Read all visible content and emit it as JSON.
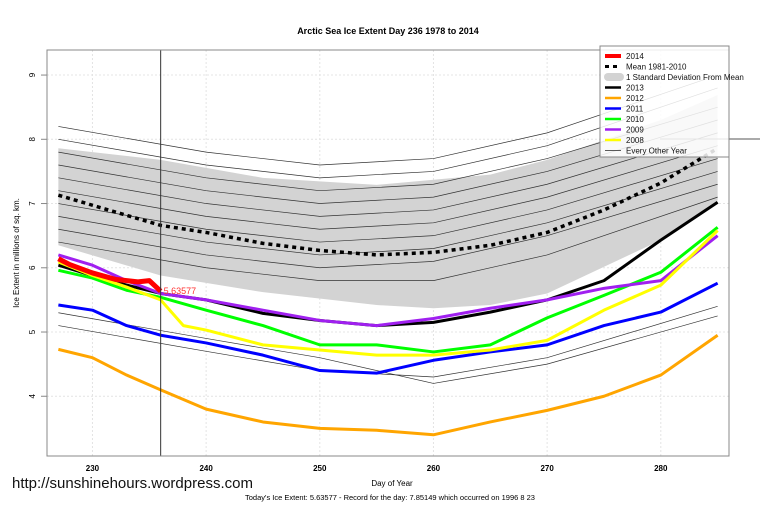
{
  "url_text": "http://sunshinehours.wordpress.com",
  "chart_data": {
    "type": "line",
    "title": "Arctic Sea Ice Extent Day 236 1978 to 2014",
    "xlabel": "Day of Year",
    "ylabel": "Ice Extent in millions of sq. km.",
    "footer": "Today's Ice Extent: 5.63577  - Record for the day: 7.85149 which occurred on 1996 8 23",
    "xlim": [
      226,
      286
    ],
    "ylim": [
      3.07,
      9.39
    ],
    "xticks": [
      "230",
      "240",
      "250",
      "260",
      "270",
      "280"
    ],
    "yticks": [
      "4",
      "5",
      "6",
      "7",
      "8",
      "9"
    ],
    "grid": true,
    "legend_position": "top-right",
    "current_day": 236,
    "current_value_label": "5.63577",
    "std_band": {
      "name": "1 Standard Deviation From Mean",
      "color": "#d3d3d3",
      "x": [
        227,
        236,
        245,
        255,
        260,
        265,
        270,
        280,
        285
      ],
      "upper": [
        7.86,
        7.68,
        7.4,
        7.29,
        7.37,
        7.45,
        7.68,
        8.3,
        8.69
      ],
      "lower": [
        6.35,
        5.88,
        5.62,
        5.42,
        5.37,
        5.42,
        5.6,
        6.43,
        7.05
      ]
    },
    "series": [
      {
        "name": "2014",
        "color": "#ff0000",
        "width": 5,
        "x": [
          227,
          228,
          230,
          232,
          234,
          235,
          236
        ],
        "y": [
          6.14,
          6.05,
          5.92,
          5.82,
          5.78,
          5.8,
          5.636
        ]
      },
      {
        "name": "Mean 1981-2010",
        "color": "#000000",
        "width": 3.5,
        "dashed": true,
        "x": [
          227,
          236,
          240,
          245,
          250,
          255,
          260,
          265,
          270,
          275,
          280,
          285
        ],
        "y": [
          7.13,
          6.66,
          6.55,
          6.38,
          6.27,
          6.2,
          6.24,
          6.35,
          6.55,
          6.9,
          7.32,
          7.86
        ]
      },
      {
        "name": "2013",
        "color": "#000000",
        "width": 3,
        "x": [
          227,
          230,
          233,
          236,
          240,
          245,
          250,
          255,
          260,
          265,
          270,
          275,
          280,
          285
        ],
        "y": [
          6.04,
          5.88,
          5.73,
          5.6,
          5.5,
          5.29,
          5.18,
          5.1,
          5.15,
          5.31,
          5.5,
          5.8,
          6.43,
          7.02
        ]
      },
      {
        "name": "2012",
        "color": "#ffa500",
        "width": 3,
        "x": [
          227,
          230,
          233,
          236,
          240,
          245,
          250,
          255,
          260,
          265,
          270,
          275,
          280,
          285
        ],
        "y": [
          4.73,
          4.6,
          4.33,
          4.1,
          3.8,
          3.6,
          3.5,
          3.47,
          3.4,
          3.6,
          3.78,
          4.0,
          4.33,
          4.95
        ]
      },
      {
        "name": "2011",
        "color": "#0000ff",
        "width": 3,
        "x": [
          227,
          230,
          233,
          236,
          240,
          245,
          250,
          255,
          260,
          265,
          270,
          275,
          280,
          285
        ],
        "y": [
          5.42,
          5.34,
          5.1,
          4.95,
          4.83,
          4.64,
          4.4,
          4.36,
          4.56,
          4.69,
          4.8,
          5.1,
          5.31,
          5.76
        ]
      },
      {
        "name": "2010",
        "color": "#00ff00",
        "width": 3,
        "x": [
          227,
          230,
          233,
          236,
          240,
          245,
          250,
          255,
          260,
          265,
          270,
          275,
          280,
          285
        ],
        "y": [
          5.96,
          5.84,
          5.65,
          5.54,
          5.34,
          5.1,
          4.8,
          4.8,
          4.69,
          4.8,
          5.22,
          5.57,
          5.93,
          6.63
        ]
      },
      {
        "name": "2009",
        "color": "#a020f0",
        "width": 3,
        "x": [
          227,
          230,
          233,
          236,
          240,
          245,
          250,
          255,
          260,
          265,
          270,
          275,
          280,
          285
        ],
        "y": [
          6.2,
          6.04,
          5.8,
          5.6,
          5.5,
          5.34,
          5.18,
          5.1,
          5.21,
          5.37,
          5.5,
          5.68,
          5.8,
          6.5
        ]
      },
      {
        "name": "2008",
        "color": "#ffff00",
        "width": 3,
        "x": [
          227,
          230,
          233,
          236,
          238,
          240,
          245,
          250,
          255,
          260,
          265,
          270,
          275,
          280,
          285
        ],
        "y": [
          6.09,
          5.88,
          5.7,
          5.5,
          5.1,
          5.03,
          4.8,
          4.72,
          4.64,
          4.64,
          4.72,
          4.87,
          5.34,
          5.73,
          6.58
        ]
      }
    ],
    "other_years": {
      "name": "Every Other Year",
      "color": "#333333",
      "x": [
        227,
        240,
        250,
        260,
        270,
        285
      ],
      "lines": [
        [
          8.2,
          7.8,
          7.6,
          7.7,
          8.1,
          9.0
        ],
        [
          8.0,
          7.6,
          7.4,
          7.5,
          7.9,
          8.8
        ],
        [
          7.8,
          7.4,
          7.2,
          7.3,
          7.7,
          8.5
        ],
        [
          7.6,
          7.2,
          7.0,
          7.1,
          7.5,
          8.3
        ],
        [
          7.4,
          7.0,
          6.8,
          6.9,
          7.3,
          8.1
        ],
        [
          7.2,
          6.8,
          6.6,
          6.7,
          7.1,
          7.9
        ],
        [
          7.0,
          6.6,
          6.4,
          6.5,
          6.9,
          7.7
        ],
        [
          6.8,
          6.4,
          6.2,
          6.3,
          6.7,
          7.5
        ],
        [
          6.6,
          6.2,
          6.0,
          6.1,
          6.5,
          7.3
        ],
        [
          6.4,
          6.0,
          5.8,
          5.8,
          6.2,
          7.1
        ],
        [
          5.3,
          4.9,
          4.6,
          4.2,
          4.5,
          5.25
        ],
        [
          5.1,
          4.7,
          4.4,
          4.3,
          4.6,
          5.4
        ]
      ]
    }
  }
}
